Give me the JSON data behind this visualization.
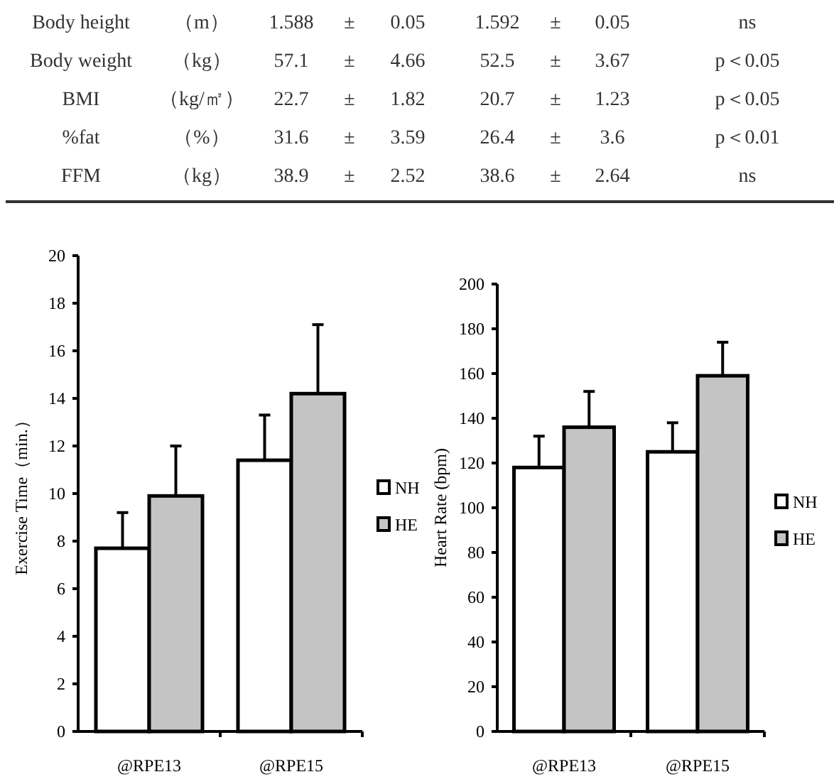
{
  "chart_data": [
    {
      "type": "other",
      "annotations": [
        "Body height",
        "（m）",
        "1.588",
        "±",
        "0.05",
        "1.592",
        "±",
        "0.05",
        "ns",
        "Body weight",
        "（kg）",
        "57.1",
        "±",
        "4.66",
        "52.5",
        "±",
        "3.67",
        "p＜0.05",
        "BMI",
        "（kg/㎡）",
        "22.7",
        "±",
        "1.82",
        "20.7",
        "±",
        "1.23",
        "p＜0.05",
        "%fat",
        "（%）",
        "31.6",
        "±",
        "3.59",
        "26.4",
        "±",
        "3.6",
        "p＜0.01",
        "FFM",
        "（kg）",
        "38.9",
        "±",
        "2.52",
        "38.6",
        "±",
        "2.64",
        "ns"
      ]
    },
    {
      "type": "bar",
      "ylabel": "Exercise Time（min.）",
      "categories": [
        "@RPE13",
        "@RPE15"
      ],
      "ylim": [
        0,
        20
      ],
      "yticks": [
        0,
        2,
        4,
        6,
        8,
        10,
        12,
        14,
        16,
        18,
        20
      ],
      "legend": "right",
      "series": [
        {
          "name": "NH",
          "color": "#ffffff",
          "values": [
            7.7,
            11.4
          ],
          "errors": [
            [
              7.7,
              9.2
            ],
            [
              11.4,
              13.3
            ]
          ]
        },
        {
          "name": "HE",
          "color": "#c4c4c4",
          "values": [
            9.9,
            14.2
          ],
          "errors": [
            [
              9.9,
              12.0
            ],
            [
              14.2,
              17.1
            ]
          ]
        }
      ]
    },
    {
      "type": "bar",
      "ylabel": "Heart Rate (bpm)",
      "categories": [
        "@RPE13",
        "@RPE15"
      ],
      "ylim": [
        0,
        200
      ],
      "yticks": [
        0,
        20,
        40,
        60,
        80,
        100,
        120,
        140,
        160,
        180,
        200
      ],
      "legend": "right",
      "series": [
        {
          "name": "NH",
          "color": "#ffffff",
          "values": [
            118,
            125
          ],
          "errors": [
            [
              118,
              132
            ],
            [
              125,
              138
            ]
          ]
        },
        {
          "name": "HE",
          "color": "#c4c4c4",
          "values": [
            136,
            159
          ],
          "errors": [
            [
              136,
              152
            ],
            [
              159,
              174
            ]
          ]
        }
      ]
    }
  ]
}
